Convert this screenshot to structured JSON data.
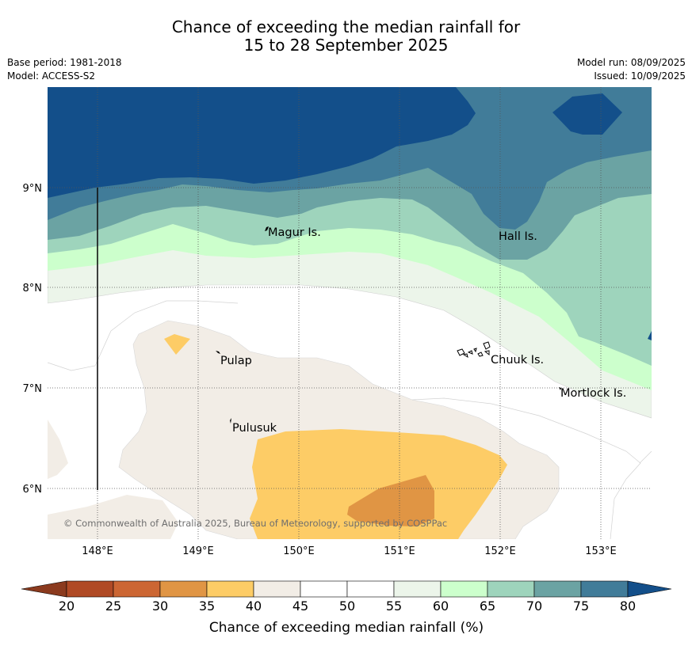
{
  "header": {
    "title_line1": "Chance of exceeding the median rainfall for",
    "title_line2": "15 to 28 September 2025",
    "base_period": "Base period: 1981-2018",
    "model": "Model: ACCESS-S2",
    "model_run": "Model run: 08/09/2025",
    "issued": "Issued: 10/09/2025"
  },
  "map": {
    "lon_labels": [
      "148°E",
      "149°E",
      "150°E",
      "151°E",
      "152°E",
      "153°E"
    ],
    "lat_labels": [
      "9°N",
      "8°N",
      "7°N",
      "6°N"
    ],
    "places": [
      {
        "name": "Magur Is."
      },
      {
        "name": "Hall Is."
      },
      {
        "name": "Pulap"
      },
      {
        "name": "Chuuk Is."
      },
      {
        "name": "Mortlock Is."
      },
      {
        "name": "Pulusuk"
      }
    ],
    "copyright": "© Commonwealth of Australia 2025, Bureau of Meteorology, supported by COSPPac"
  },
  "colorbar": {
    "ticks": [
      "20",
      "25",
      "30",
      "35",
      "40",
      "45",
      "50",
      "55",
      "60",
      "65",
      "70",
      "75",
      "80"
    ],
    "colors": [
      "#8b3a1e",
      "#b04a25",
      "#cc6633",
      "#e09544",
      "#fdcc66",
      "#f2ede6",
      "#ffffff",
      "#ffffff",
      "#ecf5ea",
      "#ccffcc",
      "#9ed4bc",
      "#6ba3a3",
      "#417c99",
      "#134f8a"
    ],
    "label": "Chance of exceeding median rainfall (%)"
  }
}
